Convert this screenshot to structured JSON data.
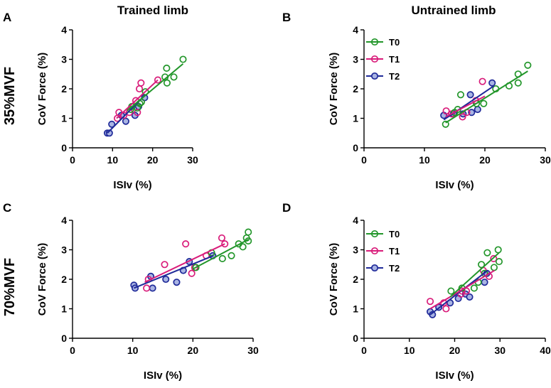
{
  "figure": {
    "column_titles": [
      "Trained limb",
      "Untrained limb"
    ],
    "row_labels": [
      "35%MVF",
      "70%MVF"
    ]
  },
  "series_style": {
    "T0": {
      "color": "#22962a",
      "fill": "none"
    },
    "T1": {
      "color": "#d91c7a",
      "fill": "none"
    },
    "T2": {
      "color": "#1f2a99",
      "fill": "#a9b4e3"
    }
  },
  "chart_data": [
    {
      "panel": "A",
      "type": "scatter",
      "xlabel": "ISIv (%)",
      "ylabel": "CoV Force (%)",
      "xlim": [
        0,
        30
      ],
      "ylim": [
        0,
        4
      ],
      "xticks": [
        0,
        10,
        20,
        30
      ],
      "yticks": [
        0,
        1,
        2,
        3,
        4
      ],
      "legend": null,
      "series": [
        {
          "name": "T0",
          "points": [
            [
              14.5,
              1.3
            ],
            [
              14.8,
              1.4
            ],
            [
              16.2,
              1.35
            ],
            [
              16.8,
              1.5
            ],
            [
              17.2,
              1.55
            ],
            [
              18.2,
              1.9
            ],
            [
              23.1,
              2.4
            ],
            [
              23.5,
              2.7
            ],
            [
              23.6,
              2.2
            ],
            [
              25.3,
              2.4
            ],
            [
              27.6,
              3.0
            ]
          ],
          "fit": [
            [
              14,
              1.3
            ],
            [
              27.6,
              2.85
            ]
          ]
        },
        {
          "name": "T1",
          "points": [
            [
              11.2,
              1.0
            ],
            [
              11.6,
              1.2
            ],
            [
              12.8,
              1.1
            ],
            [
              14.2,
              1.2
            ],
            [
              15.8,
              1.6
            ],
            [
              16.2,
              1.2
            ],
            [
              16.7,
              2.0
            ],
            [
              17.1,
              2.2
            ],
            [
              21.3,
              2.3
            ]
          ],
          "fit": [
            [
              11,
              1.0
            ],
            [
              21.3,
              2.3
            ]
          ]
        },
        {
          "name": "T2",
          "points": [
            [
              8.7,
              0.5
            ],
            [
              9.2,
              0.5
            ],
            [
              9.8,
              0.8
            ],
            [
              12.2,
              1.1
            ],
            [
              13.3,
              0.9
            ],
            [
              15.6,
              1.1
            ],
            [
              16.5,
              1.4
            ],
            [
              18.0,
              1.7
            ]
          ],
          "fit": [
            [
              8.7,
              0.5
            ],
            [
              18.2,
              1.8
            ]
          ]
        }
      ]
    },
    {
      "panel": "B",
      "type": "scatter",
      "xlabel": "ISIv (%)",
      "ylabel": "CoV Force (%)",
      "xlim": [
        0,
        30
      ],
      "ylim": [
        0,
        4
      ],
      "xticks": [
        0,
        10,
        20,
        30
      ],
      "yticks": [
        0,
        1,
        2,
        3,
        4
      ],
      "legend": [
        "T0",
        "T1",
        "T2"
      ],
      "series": [
        {
          "name": "T0",
          "points": [
            [
              13.5,
              0.8
            ],
            [
              15.0,
              1.2
            ],
            [
              15.5,
              1.3
            ],
            [
              16.0,
              1.8
            ],
            [
              18.6,
              1.5
            ],
            [
              19.8,
              1.5
            ],
            [
              21.8,
              2.0
            ],
            [
              24.0,
              2.1
            ],
            [
              25.5,
              2.2
            ],
            [
              25.5,
              2.5
            ],
            [
              27.1,
              2.8
            ]
          ],
          "fit": [
            [
              13.5,
              0.85
            ],
            [
              27.1,
              2.6
            ]
          ]
        },
        {
          "name": "T1",
          "points": [
            [
              13.6,
              1.25
            ],
            [
              14.5,
              1.15
            ],
            [
              16.3,
              1.05
            ],
            [
              17.0,
              1.2
            ],
            [
              18.5,
              1.6
            ],
            [
              19.6,
              2.25
            ]
          ],
          "fit": [
            [
              13.5,
              1.05
            ],
            [
              20,
              1.75
            ]
          ]
        },
        {
          "name": "T2",
          "points": [
            [
              13.2,
              1.1
            ],
            [
              14.8,
              1.15
            ],
            [
              16.4,
              1.15
            ],
            [
              17.6,
              1.8
            ],
            [
              17.8,
              1.2
            ],
            [
              18.8,
              1.3
            ],
            [
              21.2,
              2.2
            ]
          ],
          "fit": [
            [
              13.2,
              0.95
            ],
            [
              21.5,
              2.1
            ]
          ]
        }
      ]
    },
    {
      "panel": "C",
      "type": "scatter",
      "xlabel": "ISIv (%)",
      "ylabel": "CoV Force (%)",
      "xlim": [
        0,
        30
      ],
      "ylim": [
        0,
        4
      ],
      "xticks": [
        0,
        10,
        20,
        30
      ],
      "yticks": [
        0,
        1,
        2,
        3,
        4
      ],
      "legend": null,
      "series": [
        {
          "name": "T0",
          "points": [
            [
              20.5,
              2.4
            ],
            [
              23.1,
              2.9
            ],
            [
              24.9,
              2.7
            ],
            [
              26.4,
              2.8
            ],
            [
              27.6,
              3.2
            ],
            [
              28.3,
              3.1
            ],
            [
              28.9,
              3.4
            ],
            [
              29.2,
              3.6
            ],
            [
              29.2,
              3.3
            ]
          ],
          "fit": [
            [
              20,
              2.35
            ],
            [
              29.2,
              3.35
            ]
          ]
        },
        {
          "name": "T1",
          "points": [
            [
              12.3,
              1.7
            ],
            [
              12.6,
              2.0
            ],
            [
              15.3,
              2.5
            ],
            [
              18.8,
              3.2
            ],
            [
              19.8,
              2.2
            ],
            [
              20.3,
              2.4
            ],
            [
              22.2,
              2.8
            ],
            [
              24.8,
              3.4
            ],
            [
              25.3,
              3.2
            ]
          ],
          "fit": [
            [
              12,
              1.9
            ],
            [
              25.3,
              3.2
            ]
          ]
        },
        {
          "name": "T2",
          "points": [
            [
              10.2,
              1.8
            ],
            [
              10.4,
              1.7
            ],
            [
              13.0,
              2.1
            ],
            [
              13.3,
              1.7
            ],
            [
              15.5,
              2.0
            ],
            [
              17.3,
              1.9
            ],
            [
              18.4,
              2.3
            ],
            [
              19.4,
              2.6
            ],
            [
              23.3,
              2.8
            ]
          ],
          "fit": [
            [
              10.2,
              1.7
            ],
            [
              23.4,
              2.8
            ]
          ]
        }
      ]
    },
    {
      "panel": "D",
      "type": "scatter",
      "xlabel": "ISIv (%)",
      "ylabel": "CoV Force (%)",
      "xlim": [
        0,
        40
      ],
      "ylim": [
        0,
        4
      ],
      "xticks": [
        0,
        10,
        20,
        30,
        40
      ],
      "yticks": [
        0,
        1,
        2,
        3,
        4
      ],
      "legend": [
        "T0",
        "T1",
        "T2"
      ],
      "series": [
        {
          "name": "T0",
          "points": [
            [
              19.2,
              1.6
            ],
            [
              21.6,
              1.7
            ],
            [
              24.3,
              1.7
            ],
            [
              25.2,
              1.9
            ],
            [
              25.9,
              2.5
            ],
            [
              26.6,
              2.2
            ],
            [
              27.2,
              2.9
            ],
            [
              28.7,
              2.4
            ],
            [
              29.6,
              3.0
            ],
            [
              29.8,
              2.6
            ]
          ],
          "fit": [
            [
              19,
              1.4
            ],
            [
              29.8,
              2.9
            ]
          ]
        },
        {
          "name": "T1",
          "points": [
            [
              14.6,
              1.25
            ],
            [
              17.6,
              1.2
            ],
            [
              18.1,
              1.0
            ],
            [
              21.4,
              1.5
            ],
            [
              21.6,
              1.6
            ],
            [
              22.6,
              1.6
            ],
            [
              26.3,
              2.3
            ],
            [
              27.6,
              2.1
            ],
            [
              28.6,
              2.7
            ]
          ],
          "fit": [
            [
              14.6,
              1.0
            ],
            [
              28.8,
              2.3
            ]
          ]
        },
        {
          "name": "T2",
          "points": [
            [
              14.6,
              0.9
            ],
            [
              15.1,
              0.8
            ],
            [
              16.5,
              1.05
            ],
            [
              19.0,
              1.2
            ],
            [
              20.8,
              1.35
            ],
            [
              22.4,
              1.5
            ],
            [
              23.3,
              1.4
            ],
            [
              26.6,
              1.9
            ],
            [
              27.1,
              2.2
            ]
          ],
          "fit": [
            [
              14.6,
              0.8
            ],
            [
              27.3,
              2.3
            ]
          ]
        }
      ]
    }
  ]
}
